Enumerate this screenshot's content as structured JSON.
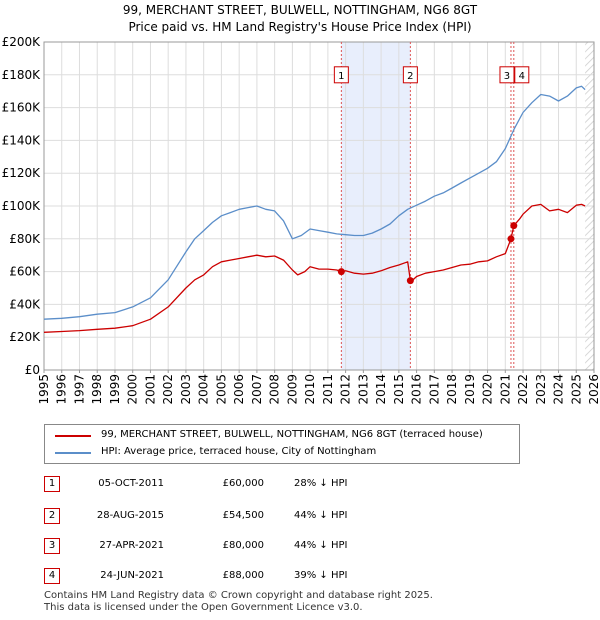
{
  "title_line1": "99, MERCHANT STREET, BULWELL, NOTTINGHAM, NG6 8GT",
  "title_line2": "Price paid vs. HM Land Registry's House Price Index (HPI)",
  "chart_data": {
    "type": "line",
    "title": "99, MERCHANT STREET, BULWELL, NOTTINGHAM, NG6 8GT",
    "subtitle": "Price paid vs. HM Land Registry's House Price Index (HPI)",
    "xlim": [
      1995,
      2026
    ],
    "ylim": [
      0,
      200000
    ],
    "x_ticks": [
      1995,
      1996,
      1997,
      1998,
      1999,
      2000,
      2001,
      2002,
      2003,
      2004,
      2005,
      2006,
      2007,
      2008,
      2009,
      2010,
      2011,
      2012,
      2013,
      2014,
      2015,
      2016,
      2017,
      2018,
      2019,
      2020,
      2021,
      2022,
      2023,
      2024,
      2025,
      2026
    ],
    "x_tick_labels": [
      "1995",
      "1996",
      "1997",
      "1998",
      "1999",
      "2000",
      "2001",
      "2002",
      "2003",
      "2004",
      "2005",
      "2006",
      "2007",
      "2008",
      "2009",
      "2010",
      "2011",
      "2012",
      "2013",
      "2014",
      "2015",
      "2016",
      "2017",
      "2018",
      "2019",
      "2020",
      "2021",
      "2022",
      "2023",
      "2024",
      "2025",
      "2026"
    ],
    "y_ticks": [
      0,
      20000,
      40000,
      60000,
      80000,
      100000,
      120000,
      140000,
      160000,
      180000,
      200000
    ],
    "y_tick_labels": [
      "£0",
      "£20K",
      "£40K",
      "£60K",
      "£80K",
      "£100K",
      "£120K",
      "£140K",
      "£160K",
      "£180K",
      "£200K"
    ],
    "grid": true,
    "series": [
      {
        "name": "99, MERCHANT STREET, BULWELL, NOTTINGHAM, NG6 8GT (terraced house)",
        "color": "#cc0000",
        "x": [
          1995,
          1996,
          1997,
          1998,
          1999,
          2000,
          2001,
          2002,
          2003,
          2003.5,
          2004,
          2004.5,
          2005,
          2005.5,
          2006,
          2006.5,
          2007,
          2007.5,
          2008,
          2008.5,
          2009,
          2009.3,
          2009.7,
          2010,
          2010.5,
          2011,
          2011.5,
          2011.76,
          2012,
          2012.5,
          2013,
          2013.5,
          2014,
          2014.5,
          2015,
          2015.5,
          2015.65,
          2015.7,
          2016,
          2016.5,
          2017,
          2017.5,
          2018,
          2018.5,
          2019,
          2019.5,
          2020,
          2020.5,
          2021,
          2021.32,
          2021.48,
          2021.8,
          2022,
          2022.5,
          2023,
          2023.5,
          2024,
          2024.5,
          2025,
          2025.3,
          2025.5
        ],
        "values": [
          23000,
          23500,
          24000,
          24800,
          25500,
          27000,
          31000,
          38500,
          50000,
          55000,
          58000,
          63000,
          66000,
          67000,
          68000,
          69000,
          70000,
          69000,
          69500,
          67000,
          61000,
          58000,
          60000,
          63000,
          61500,
          61500,
          61000,
          60000,
          60500,
          59000,
          58500,
          59000,
          60500,
          62500,
          64000,
          66000,
          54500,
          54000,
          57000,
          59000,
          60000,
          61000,
          62500,
          64000,
          64500,
          66000,
          66500,
          69000,
          71000,
          80000,
          88000,
          92000,
          95000,
          100000,
          101000,
          97000,
          98000,
          96000,
          100500,
          101000,
          100000
        ]
      },
      {
        "name": "HPI: Average price, terraced house, City of Nottingham",
        "color": "#5b8ec9",
        "x": [
          1995,
          1996,
          1997,
          1998,
          1999,
          2000,
          2001,
          2002,
          2003,
          2003.5,
          2004,
          2004.5,
          2005,
          2005.5,
          2006,
          2006.5,
          2007,
          2007.5,
          2008,
          2008.5,
          2009,
          2009.5,
          2010,
          2010.5,
          2011,
          2011.5,
          2012,
          2012.5,
          2013,
          2013.5,
          2014,
          2014.5,
          2015,
          2015.5,
          2016,
          2016.5,
          2017,
          2017.5,
          2018,
          2018.5,
          2019,
          2019.5,
          2020,
          2020.5,
          2021,
          2021.5,
          2022,
          2022.5,
          2023,
          2023.5,
          2024,
          2024.5,
          2025,
          2025.3,
          2025.5
        ],
        "values": [
          31000,
          31500,
          32500,
          34000,
          35000,
          38500,
          44000,
          55000,
          72000,
          80000,
          85000,
          90000,
          94000,
          96000,
          98000,
          99000,
          100000,
          98000,
          97000,
          91000,
          80000,
          82000,
          86000,
          85000,
          84000,
          83000,
          82500,
          82000,
          82000,
          83500,
          86000,
          89000,
          94000,
          98000,
          100500,
          103000,
          106000,
          108000,
          111000,
          114000,
          117000,
          120000,
          123000,
          127000,
          135000,
          147000,
          157000,
          163000,
          168000,
          167000,
          164000,
          167000,
          172000,
          173000,
          171000
        ]
      }
    ],
    "transactions": [
      {
        "label": "1",
        "date": "05-OCT-2011",
        "x": 2011.76,
        "price": 60000,
        "price_text": "£60,000",
        "hpi_text": "28% ↓ HPI"
      },
      {
        "label": "2",
        "date": "28-AUG-2015",
        "x": 2015.65,
        "price": 54500,
        "price_text": "£54,500",
        "hpi_text": "44% ↓ HPI"
      },
      {
        "label": "3",
        "date": "27-APR-2021",
        "x": 2021.32,
        "price": 80000,
        "price_text": "£80,000",
        "hpi_text": "44% ↓ HPI"
      },
      {
        "label": "4",
        "date": "24-JUN-2021",
        "x": 2021.48,
        "price": 88000,
        "price_text": "£88,000",
        "hpi_text": "39% ↓ HPI"
      }
    ],
    "shaded_range": [
      2011.76,
      2015.65
    ],
    "future_from": 2025.5
  },
  "legend": {
    "property_label": "99, MERCHANT STREET, BULWELL, NOTTINGHAM, NG6 8GT (terraced house)",
    "hpi_label": "HPI: Average price, terraced house, City of Nottingham"
  },
  "footer_line1": "Contains HM Land Registry data © Crown copyright and database right 2025.",
  "footer_line2": "This data is licensed under the Open Government Licence v3.0."
}
